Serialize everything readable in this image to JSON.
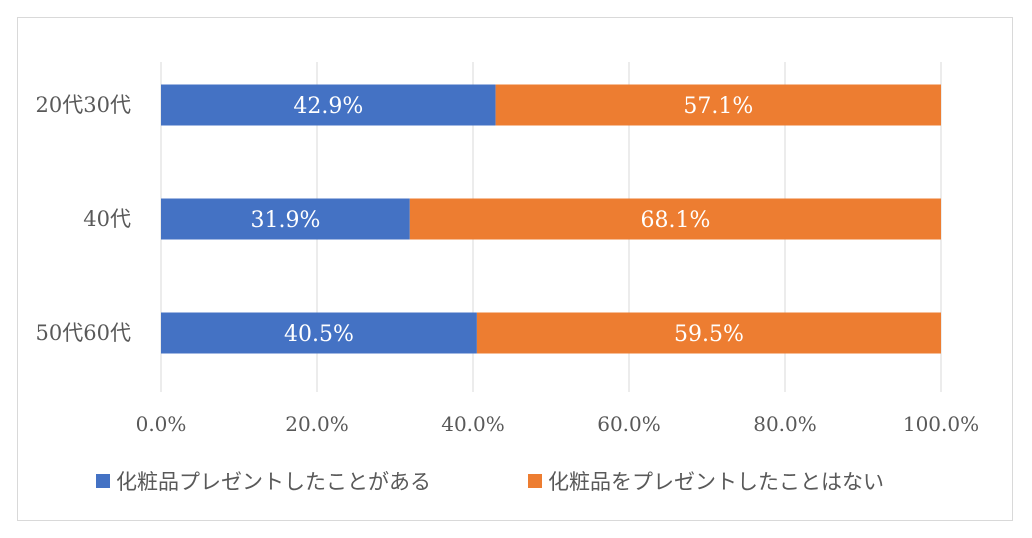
{
  "chart_data": {
    "type": "bar",
    "orientation": "horizontal",
    "stacked": true,
    "percent_stacked": true,
    "categories": [
      "20代30代",
      "40代",
      "50代60代"
    ],
    "series": [
      {
        "name": "化粧品プレゼントしたことがある",
        "values": [
          42.9,
          31.9,
          40.5
        ],
        "labels": [
          "42.9%",
          "31.9%",
          "40.5%"
        ],
        "color": "#4472c4"
      },
      {
        "name": "化粧品をプレゼントしたことはない",
        "values": [
          57.1,
          68.1,
          59.5
        ],
        "labels": [
          "57.1%",
          "68.1%",
          "59.5%"
        ],
        "color": "#ed7d31"
      }
    ],
    "xlim": [
      0,
      100
    ],
    "xticks": [
      0,
      20,
      40,
      60,
      80,
      100
    ],
    "xtick_labels": [
      "0.0%",
      "20.0%",
      "40.0%",
      "60.0%",
      "80.0%",
      "100.0%"
    ],
    "grid": true,
    "legend_position": "bottom",
    "gridline_color": "#d9d9d9",
    "label_color": "#595959"
  }
}
